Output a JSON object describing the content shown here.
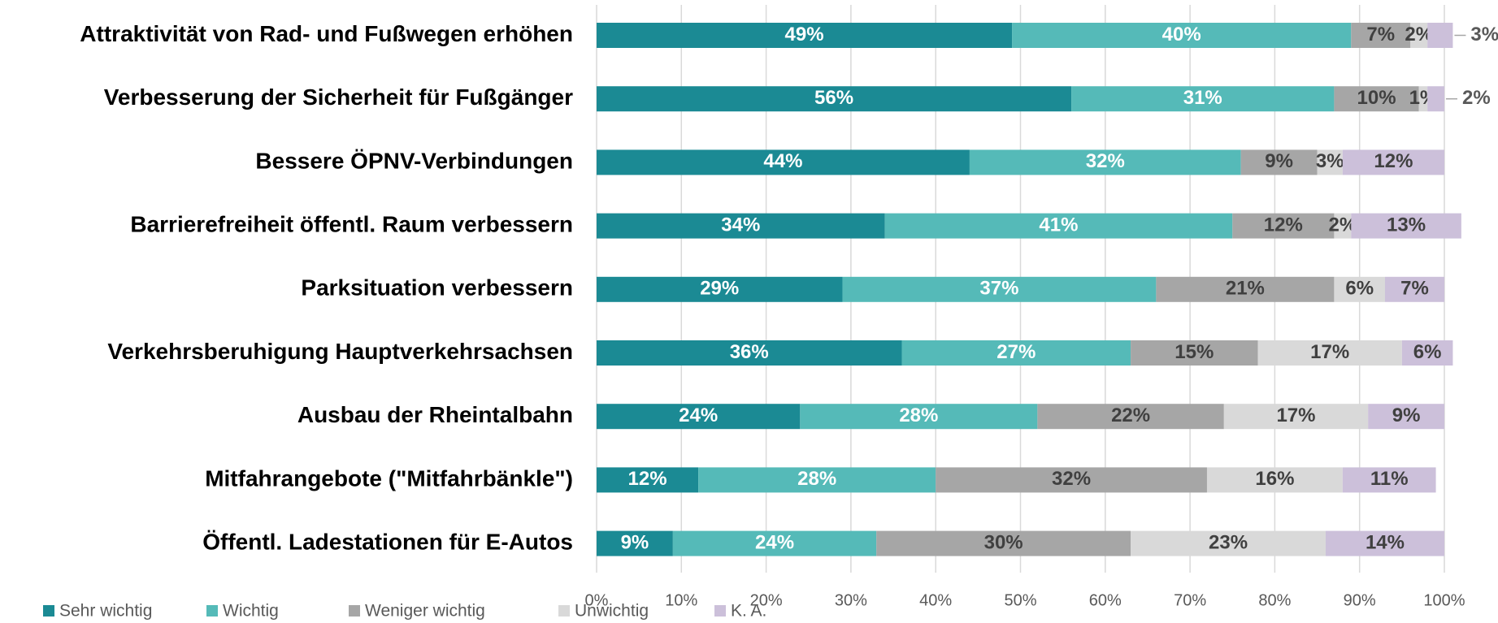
{
  "chart_data": {
    "type": "stacked_barh",
    "categories": [
      "Attraktivität von Rad- und Fußwegen erhöhen",
      "Verbesserung der Sicherheit für Fußgänger",
      "Bessere ÖPNV-Verbindungen",
      "Barrierefreiheit öffentl. Raum verbessern",
      "Parksituation verbessern",
      "Verkehrsberuhigung  Hauptverkehrsachsen",
      "Ausbau der Rheintalbahn",
      "Mitfahrangebote (\"Mitfahrbänkle\")",
      "Öffentl. Ladestationen für E-Autos"
    ],
    "series": [
      {
        "name": "Sehr wichtig",
        "color": "#1b8a94",
        "values": [
          49,
          56,
          44,
          34,
          29,
          36,
          24,
          12,
          9
        ],
        "value_labels": [
          "49%",
          "56%",
          "44%",
          "34%",
          "29%",
          "36%",
          "24%",
          "12%",
          "9%"
        ]
      },
      {
        "name": "Wichtig",
        "color": "#55bab8",
        "values": [
          40,
          31,
          32,
          41,
          37,
          27,
          28,
          28,
          24
        ],
        "value_labels": [
          "40%",
          "31%",
          "32%",
          "41%",
          "37%",
          "27%",
          "28%",
          "28%",
          "24%"
        ]
      },
      {
        "name": "Weniger wichtig",
        "color": "#a6a6a6",
        "values": [
          7,
          10,
          9,
          12,
          21,
          15,
          22,
          32,
          30
        ],
        "value_labels": [
          "7%",
          "10%",
          "9%",
          "12%",
          "21%",
          "15%",
          "22%",
          "32%",
          "30%"
        ]
      },
      {
        "name": "Unwichtig",
        "color": "#d9d9d9",
        "values": [
          2,
          1,
          3,
          2,
          6,
          17,
          17,
          16,
          23
        ],
        "value_labels": [
          "2%",
          "1%",
          "3%",
          "2%",
          "6%",
          "17%",
          "17%",
          "16%",
          "23%"
        ]
      },
      {
        "name": "K. A.",
        "color": "#ccc0da",
        "values": [
          3,
          2,
          12,
          13,
          7,
          6,
          9,
          11,
          14
        ],
        "value_labels": [
          "3%",
          "2%",
          "12%",
          "13%",
          "7%",
          "6%",
          "9%",
          "11%",
          "14%"
        ]
      }
    ],
    "xlim": [
      0,
      100
    ],
    "xticks": [
      {
        "value": 0,
        "label": "0%"
      },
      {
        "value": 10,
        "label": "10%"
      },
      {
        "value": 20,
        "label": "20%"
      },
      {
        "value": 30,
        "label": "30%"
      },
      {
        "value": 40,
        "label": "40%"
      },
      {
        "value": 50,
        "label": "50%"
      },
      {
        "value": 60,
        "label": "60%"
      },
      {
        "value": 70,
        "label": "70%"
      },
      {
        "value": 80,
        "label": "80%"
      },
      {
        "value": 90,
        "label": "90%"
      },
      {
        "value": 100,
        "label": "100%"
      }
    ],
    "grid": true,
    "legend": "bottom-left"
  }
}
